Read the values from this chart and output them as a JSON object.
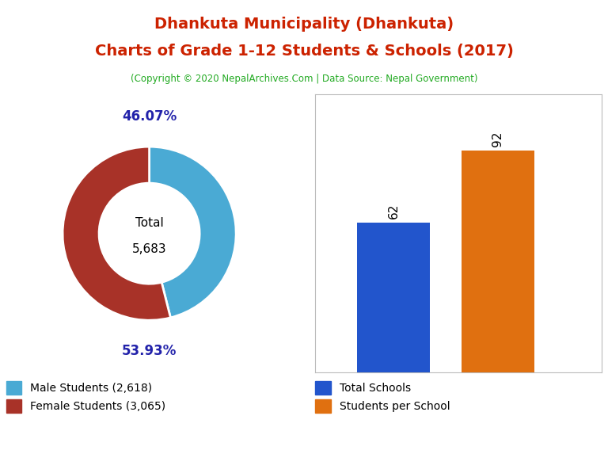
{
  "title_line1": "Dhankuta Municipality (Dhankuta)",
  "title_line2": "Charts of Grade 1-12 Students & Schools (2017)",
  "subtitle": "(Copyright © 2020 NepalArchives.Com | Data Source: Nepal Government)",
  "title_color": "#cc2200",
  "subtitle_color": "#22aa22",
  "donut": {
    "male_students": 2618,
    "female_students": 3065,
    "total": 5683,
    "male_pct": "46.07%",
    "female_pct": "53.93%",
    "male_color": "#4aaad4",
    "female_color": "#a83228",
    "label_color": "#2222aa"
  },
  "bar": {
    "values": [
      62,
      92
    ],
    "colors": [
      "#2255cc",
      "#e07010"
    ],
    "bar_label_color": "black"
  },
  "legend_donut": [
    {
      "label": "Male Students (2,618)",
      "color": "#4aaad4"
    },
    {
      "label": "Female Students (3,065)",
      "color": "#a83228"
    }
  ],
  "legend_bar": [
    {
      "label": "Total Schools",
      "color": "#2255cc"
    },
    {
      "label": "Students per School",
      "color": "#e07010"
    }
  ],
  "background_color": "#ffffff"
}
